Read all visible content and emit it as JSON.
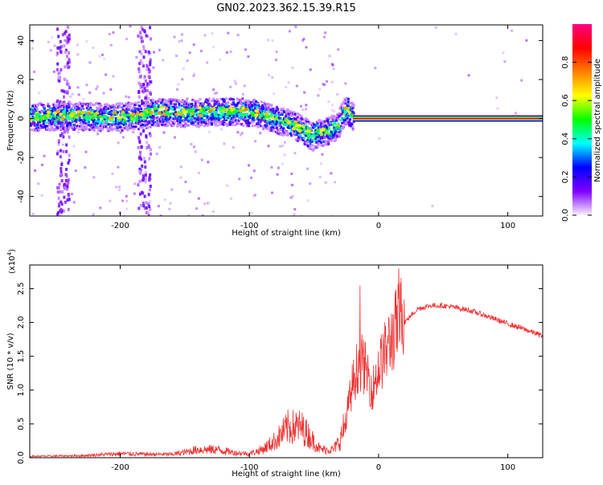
{
  "title": "GN02.2023.362.15.39.R15",
  "chart_data": [
    {
      "type": "heatmap",
      "title": "GN02.2023.362.15.39.R15",
      "xlabel": "Height of straight line (km)",
      "ylabel": "Frequency (Hz)",
      "xlim": [
        -270,
        127
      ],
      "ylim": [
        -50,
        48
      ],
      "xticks": [
        "-200",
        "-100",
        "0",
        "100"
      ],
      "xtick_values": [
        -200,
        -100,
        0,
        100
      ],
      "yticks": [
        "40",
        "20",
        "0",
        "-20",
        "-40"
      ],
      "ytick_values": [
        40,
        20,
        0,
        -20,
        -40
      ],
      "colorbar": {
        "label": "Normalized spectral amplitude",
        "range": [
          0,
          1
        ],
        "ticks": [
          "0.0",
          "0.2",
          "0.4",
          "0.6",
          "0.8"
        ],
        "tick_values": [
          0.0,
          0.2,
          0.4,
          0.6,
          0.8
        ],
        "colormap": [
          "#f8f0fd",
          "#8000ff",
          "#0000ff",
          "#00ffff",
          "#00ff00",
          "#ffff00",
          "#ff8000",
          "#ff0000",
          "#ff0080"
        ]
      },
      "ridge": {
        "x": [
          -268,
          -240,
          -210,
          -185,
          -170,
          -150,
          -130,
          -110,
          -95,
          -80,
          -70,
          -60,
          -52,
          -48,
          -40,
          -32,
          -28,
          -25,
          -22,
          -15,
          -5,
          0,
          5,
          10,
          127
        ],
        "y": [
          1,
          2,
          1,
          2,
          4,
          3,
          4,
          4,
          3,
          0,
          -2,
          -5,
          -9,
          -7,
          -6,
          -3,
          3,
          5,
          2,
          0,
          1,
          2,
          1,
          0,
          0
        ]
      },
      "strong_line": {
        "x_start": -20,
        "x_end": 127,
        "y": 0
      },
      "vertical_bands": [
        -245,
        -182
      ]
    },
    {
      "type": "line",
      "xlabel": "Height of straight line (km)",
      "ylabel": "SNR (10 * v/v)",
      "y_multiplier": "(x10",
      "y_multiplier_exp": "4",
      "xlim": [
        -270,
        127
      ],
      "ylim": [
        0,
        2.85
      ],
      "xticks": [
        "-200",
        "-100",
        "0",
        "100"
      ],
      "xtick_values": [
        -200,
        -100,
        0,
        100
      ],
      "yticks": [
        "0.0",
        "0.5",
        "1.0",
        "1.5",
        "2.0",
        "2.5"
      ],
      "ytick_values": [
        0.0,
        0.5,
        1.0,
        1.5,
        2.0,
        2.5
      ],
      "color": "#ee3333",
      "envelope": {
        "x": [
          -270,
          -230,
          -200,
          -180,
          -160,
          -150,
          -140,
          -125,
          -110,
          -100,
          -90,
          -80,
          -70,
          -60,
          -55,
          -45,
          -35,
          -30,
          -25,
          -20,
          -15,
          -12,
          -8,
          -5,
          0,
          5,
          10,
          15,
          20,
          30,
          40,
          50,
          60,
          70,
          80,
          90,
          100,
          110,
          127
        ],
        "y": [
          0.02,
          0.03,
          0.06,
          0.05,
          0.05,
          0.08,
          0.12,
          0.12,
          0.07,
          0.06,
          0.12,
          0.25,
          0.45,
          0.45,
          0.35,
          0.12,
          0.12,
          0.25,
          0.55,
          1.0,
          1.3,
          1.25,
          1.1,
          0.9,
          1.2,
          1.4,
          1.6,
          1.8,
          2.0,
          2.2,
          2.25,
          2.25,
          2.22,
          2.18,
          2.12,
          2.05,
          1.98,
          1.92,
          1.8
        ]
      }
    }
  ]
}
